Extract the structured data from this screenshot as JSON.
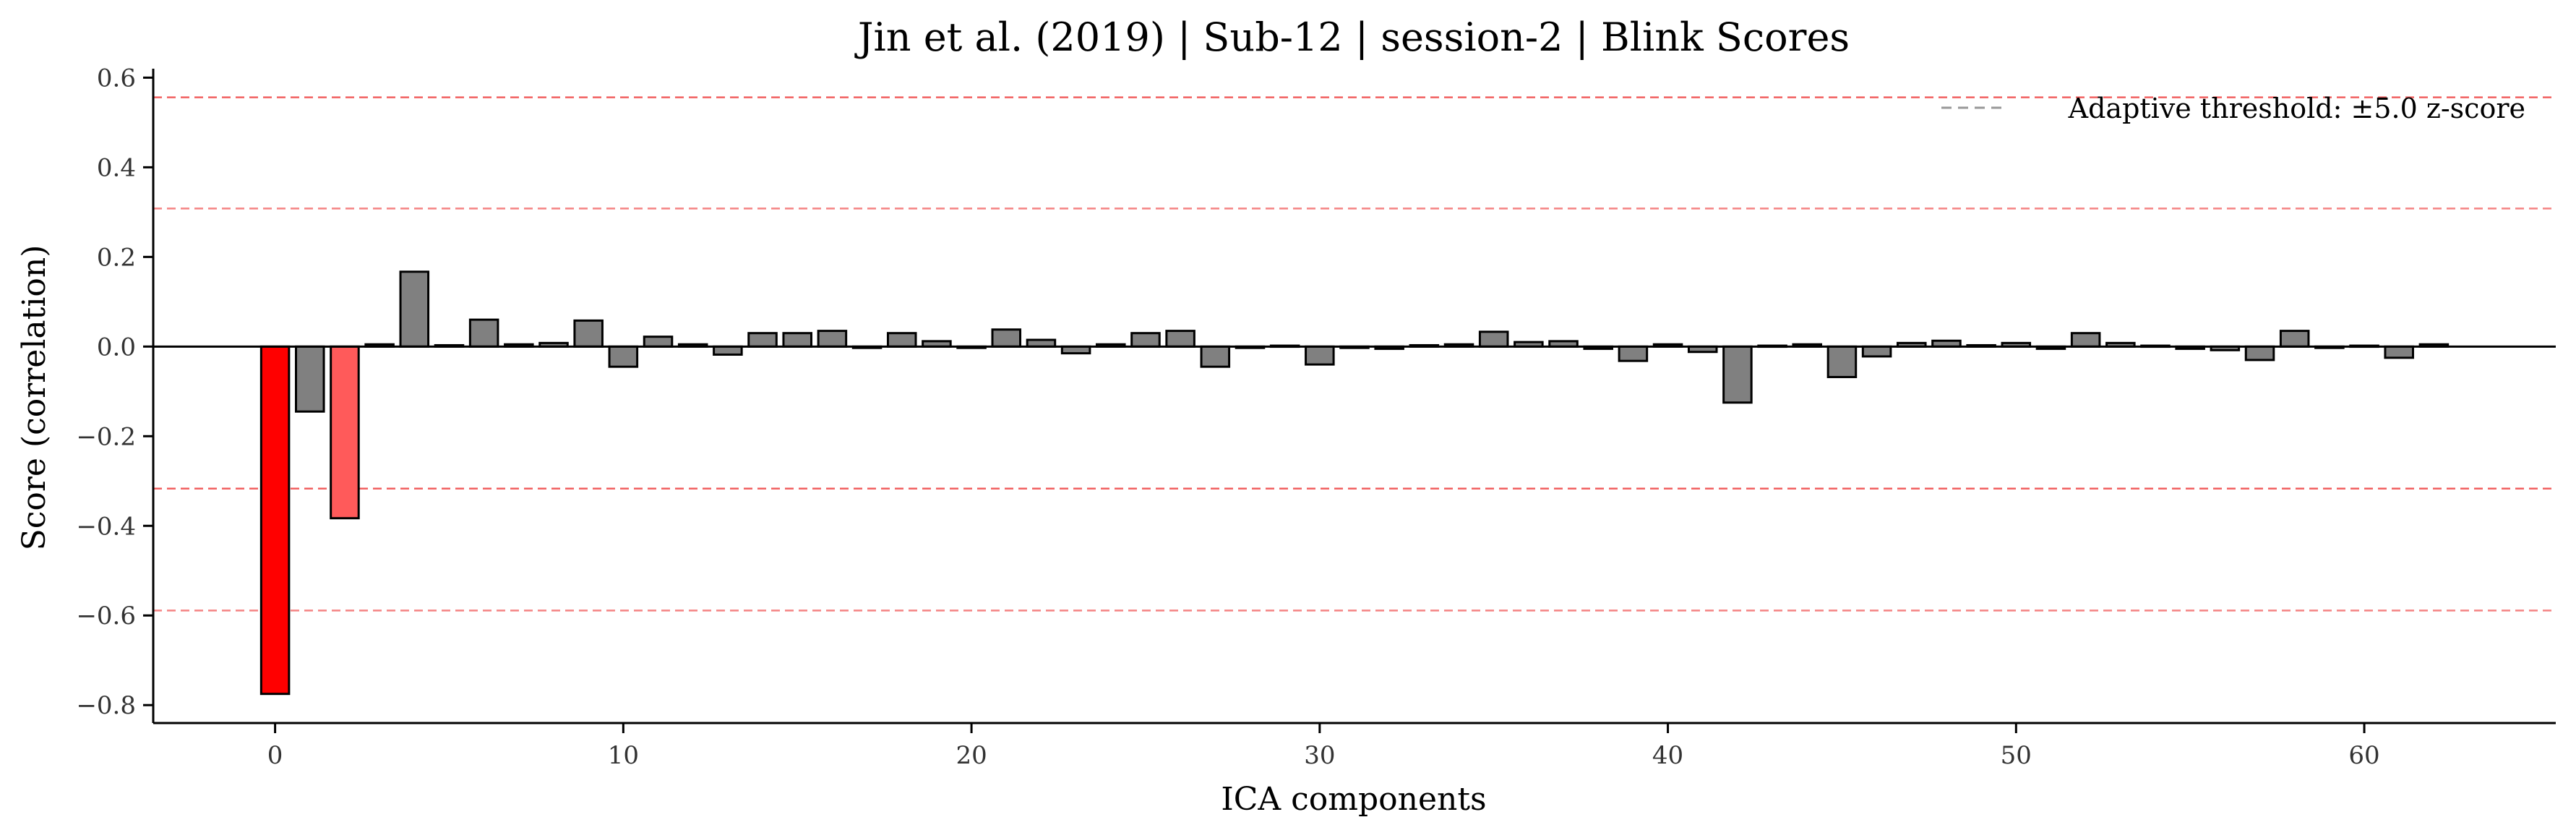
{
  "chart_data": {
    "type": "bar",
    "title": "Jin et al. (2019) | Sub-12 | session-2 | Blink Scores",
    "xlabel": "ICA components",
    "ylabel": "Score (correlation)",
    "xlim": [
      -3.5,
      65.5
    ],
    "ylim": [
      -0.84,
      0.62
    ],
    "xticks": [
      0,
      10,
      20,
      30,
      40,
      50,
      60
    ],
    "yticks": [
      -0.8,
      -0.6,
      -0.4,
      -0.2,
      0.0,
      0.2,
      0.4,
      0.6
    ],
    "ytick_labels": [
      "−0.8",
      "−0.6",
      "−0.4",
      "−0.2",
      "0.0",
      "0.2",
      "0.4",
      "0.6"
    ],
    "grid": false,
    "legend": {
      "placement": "top-right",
      "entries": [
        {
          "label": "Adaptive threshold: ±5.0 z-score",
          "style": "dashed",
          "color": "#999999"
        }
      ]
    },
    "zero_line": true,
    "threshold_lines": [
      0.556,
      0.308,
      -0.317,
      -0.589
    ],
    "threshold_color": "#f05050",
    "colors": {
      "default": "#808080",
      "strong": "#ff0000",
      "moderate": "#ff5a5a",
      "edge": "#000000"
    },
    "x": [
      0,
      1,
      2,
      3,
      4,
      5,
      6,
      7,
      8,
      9,
      10,
      11,
      12,
      13,
      14,
      15,
      16,
      17,
      18,
      19,
      20,
      21,
      22,
      23,
      24,
      25,
      26,
      27,
      28,
      29,
      30,
      31,
      32,
      33,
      34,
      35,
      36,
      37,
      38,
      39,
      40,
      41,
      42,
      43,
      44,
      45,
      46,
      47,
      48,
      49,
      50,
      51,
      52,
      53,
      54,
      55,
      56,
      57,
      58,
      59,
      60,
      61,
      62
    ],
    "values": [
      -0.775,
      -0.145,
      -0.383,
      0.005,
      0.167,
      0.003,
      0.06,
      0.005,
      0.008,
      0.058,
      -0.045,
      0.022,
      0.005,
      -0.018,
      0.03,
      0.03,
      0.035,
      -0.003,
      0.03,
      0.012,
      -0.003,
      0.038,
      0.015,
      -0.015,
      0.005,
      0.03,
      0.035,
      -0.045,
      -0.003,
      0.002,
      -0.04,
      -0.003,
      -0.005,
      0.003,
      0.005,
      0.033,
      0.01,
      0.012,
      -0.005,
      -0.032,
      0.005,
      -0.012,
      -0.125,
      0.002,
      0.005,
      -0.068,
      -0.022,
      0.008,
      0.013,
      0.003,
      0.008,
      -0.005,
      0.03,
      0.008,
      0.002,
      -0.005,
      -0.008,
      -0.03,
      0.035,
      -0.003,
      0.002,
      -0.025,
      0.005
    ],
    "bar_colors": [
      "strong",
      "default",
      "moderate",
      "default",
      "default",
      "default",
      "default",
      "default",
      "default",
      "default",
      "default",
      "default",
      "default",
      "default",
      "default",
      "default",
      "default",
      "default",
      "default",
      "default",
      "default",
      "default",
      "default",
      "default",
      "default",
      "default",
      "default",
      "default",
      "default",
      "default",
      "default",
      "default",
      "default",
      "default",
      "default",
      "default",
      "default",
      "default",
      "default",
      "default",
      "default",
      "default",
      "default",
      "default",
      "default",
      "default",
      "default",
      "default",
      "default",
      "default",
      "default",
      "default",
      "default",
      "default",
      "default",
      "default",
      "default",
      "default",
      "default",
      "default",
      "default",
      "default",
      "default"
    ]
  }
}
